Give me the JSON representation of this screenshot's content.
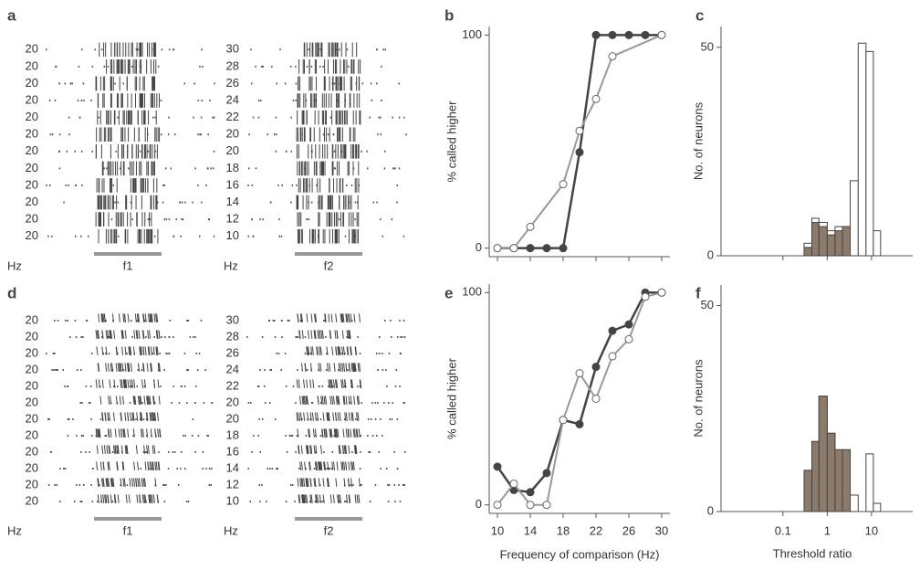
{
  "chart_data": [
    {
      "type": "raster",
      "panel_label": "a",
      "unit": "Hz",
      "stimuli": [
        "f1",
        "f2"
      ],
      "f1_rows": [
        20,
        20,
        20,
        20,
        20,
        20,
        20,
        20,
        20,
        20,
        20,
        20
      ],
      "f2_rows": [
        30,
        28,
        26,
        24,
        22,
        20,
        20,
        18,
        16,
        14,
        12,
        10
      ]
    },
    {
      "type": "line",
      "panel_label": "b",
      "y_label": "% called higher",
      "xlim": [
        9,
        31
      ],
      "xticks": [
        10,
        14,
        18,
        22,
        26,
        30
      ],
      "xtick_labels": false,
      "ylim": [
        -4,
        104
      ],
      "yticks": [
        0,
        100
      ],
      "series": [
        {
          "color": "#444444",
          "filled": true,
          "x": [
            10,
            12,
            14,
            16,
            18,
            20,
            22,
            24,
            26,
            28,
            30
          ],
          "values": [
            0,
            0,
            0,
            0,
            0,
            45,
            100,
            100,
            100,
            100,
            100
          ]
        },
        {
          "color": "#999999",
          "filled": false,
          "x": [
            10,
            12,
            14,
            18,
            20,
            22,
            24,
            30
          ],
          "values": [
            0,
            0,
            10,
            30,
            55,
            70,
            90,
            100
          ]
        }
      ]
    },
    {
      "type": "histogram",
      "panel_label": "c",
      "y_label": "No. of neurons",
      "log_x": true,
      "xlim": [
        0.004,
        85
      ],
      "xticks": [
        0.1,
        1,
        10
      ],
      "xtick_labels": false,
      "ylim": [
        0,
        55
      ],
      "yticks": [
        0,
        50
      ],
      "bins": [
        0.3,
        0.45,
        0.65,
        1,
        1.5,
        2.2,
        3.3,
        5,
        7.5,
        11,
        16
      ],
      "series": [
        {
          "color": "#ffffff",
          "values": [
            3,
            9,
            8,
            6,
            7,
            7,
            18,
            51,
            49,
            6
          ]
        },
        {
          "color": "#8c7b6b",
          "values": [
            2,
            8,
            7,
            5,
            6,
            7,
            0,
            0,
            0,
            0
          ]
        }
      ]
    },
    {
      "type": "raster",
      "panel_label": "d",
      "unit": "Hz",
      "stimuli": [
        "f1",
        "f2"
      ],
      "f1_rows": [
        20,
        20,
        20,
        20,
        20,
        20,
        20,
        20,
        20,
        20,
        20,
        20
      ],
      "f2_rows": [
        30,
        28,
        26,
        24,
        22,
        20,
        20,
        18,
        16,
        14,
        12,
        10
      ]
    },
    {
      "type": "line",
      "panel_label": "e",
      "y_label": "% called higher",
      "x_label": "Frequency of comparison (Hz)",
      "xlim": [
        9,
        31
      ],
      "xticks": [
        10,
        14,
        18,
        22,
        26,
        30
      ],
      "xtick_labels": true,
      "ylim": [
        -4,
        104
      ],
      "yticks": [
        0,
        100
      ],
      "series": [
        {
          "color": "#444444",
          "filled": true,
          "x": [
            10,
            12,
            14,
            16,
            18,
            20,
            22,
            24,
            26,
            28,
            30
          ],
          "values": [
            18,
            7,
            6,
            15,
            40,
            38,
            65,
            82,
            85,
            100,
            100
          ]
        },
        {
          "color": "#999999",
          "filled": false,
          "x": [
            10,
            12,
            14,
            16,
            18,
            20,
            22,
            24,
            26,
            28,
            30
          ],
          "values": [
            0,
            10,
            0,
            0,
            40,
            62,
            50,
            70,
            78,
            98,
            100
          ]
        }
      ]
    },
    {
      "type": "histogram",
      "panel_label": "f",
      "y_label": "No. of neurons",
      "x_label": "Threshold ratio",
      "log_x": true,
      "xlim": [
        0.004,
        85
      ],
      "xticks": [
        0.1,
        1,
        10
      ],
      "xtick_labels": true,
      "ylim": [
        0,
        55
      ],
      "yticks": [
        0,
        50
      ],
      "bins": [
        0.3,
        0.45,
        0.65,
        1,
        1.5,
        2.2,
        3.3,
        5,
        7.5,
        11,
        16
      ],
      "series": [
        {
          "color": "#ffffff",
          "values": [
            10,
            17,
            28,
            19,
            15,
            15,
            4,
            0,
            14,
            2
          ]
        },
        {
          "color": "#8c7b6b",
          "values": [
            10,
            17,
            28,
            19,
            15,
            15,
            0,
            0,
            0,
            0
          ]
        }
      ]
    }
  ]
}
